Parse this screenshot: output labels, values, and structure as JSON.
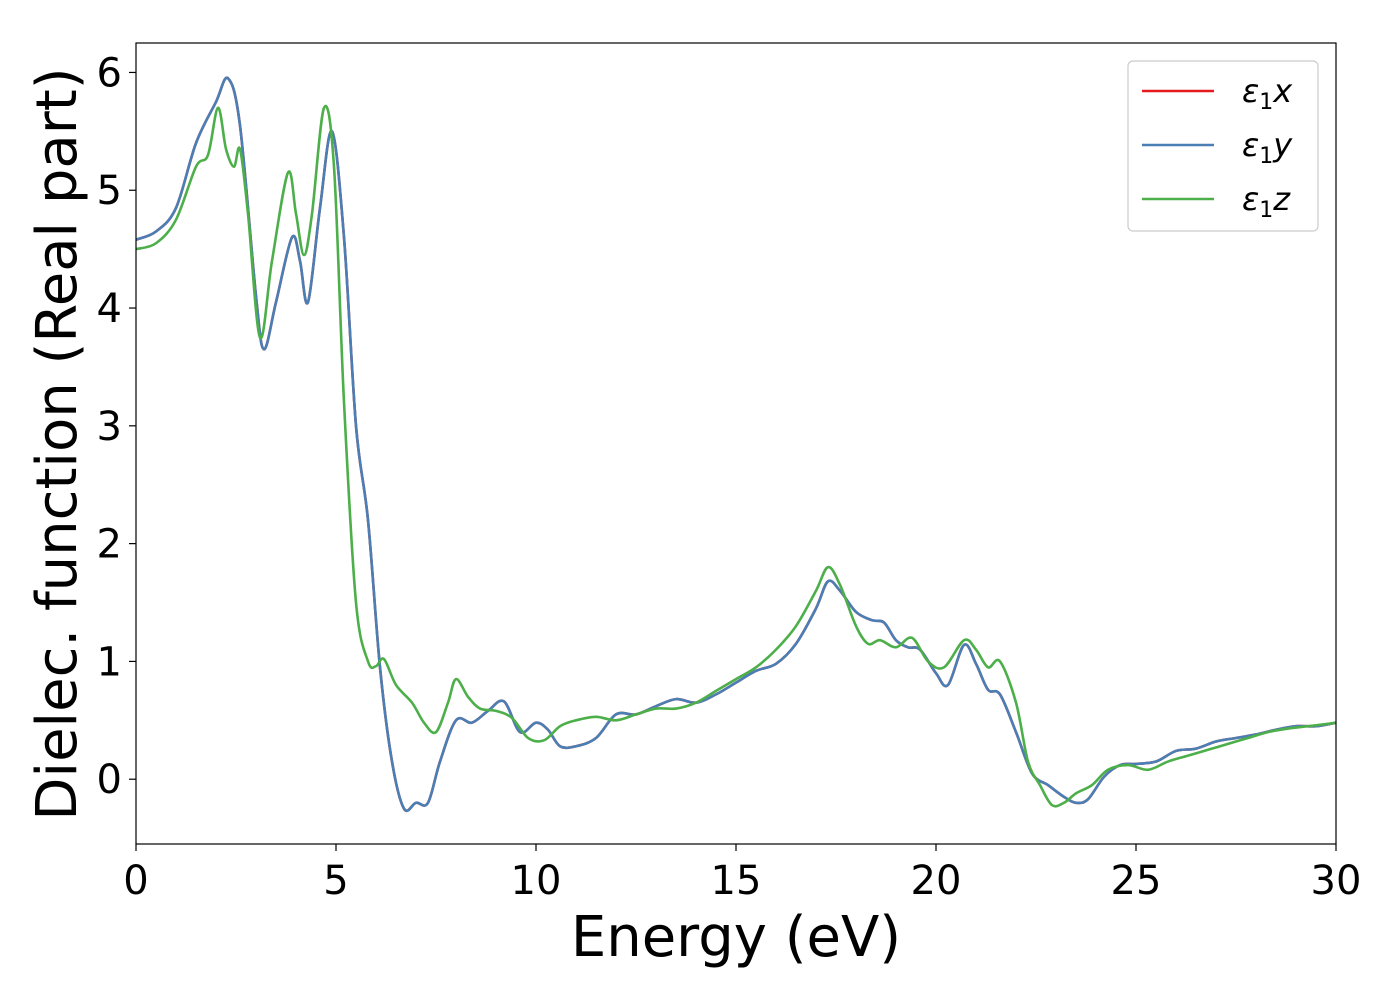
{
  "chart_data": {
    "type": "line",
    "xlabel": "Energy (eV)",
    "ylabel": "Dielec. function (Real part)",
    "xlim": [
      0,
      30
    ],
    "ylim": [
      -0.55,
      6.25
    ],
    "xticks": [
      "0",
      "5",
      "10",
      "15",
      "20",
      "25",
      "30"
    ],
    "yticks": [
      "0",
      "1",
      "2",
      "3",
      "4",
      "5",
      "6"
    ],
    "grid": false,
    "legend_position": "top-right",
    "series": [
      {
        "name": "ε₁x",
        "legend_base": "ε",
        "legend_sub": "1",
        "legend_var": "x",
        "color": "#e41a1c",
        "x": [
          0,
          0.5,
          1.0,
          1.5,
          2.0,
          2.3,
          2.6,
          3.0,
          3.2,
          3.5,
          3.9,
          4.1,
          4.3,
          4.6,
          4.9,
          5.2,
          5.5,
          5.8,
          6.1,
          6.4,
          6.7,
          7.0,
          7.3,
          7.6,
          8.0,
          8.4,
          8.8,
          9.2,
          9.6,
          10.0,
          10.3,
          10.6,
          11.0,
          11.5,
          12.0,
          12.5,
          13.0,
          13.5,
          14.0,
          14.5,
          15.0,
          15.5,
          16.0,
          16.5,
          17.0,
          17.3,
          17.6,
          18.0,
          18.4,
          18.7,
          19.0,
          19.3,
          19.6,
          20.0,
          20.3,
          20.7,
          21.0,
          21.3,
          21.6,
          22.0,
          22.4,
          22.8,
          23.2,
          23.5,
          23.8,
          24.2,
          24.6,
          25.0,
          25.5,
          26.0,
          26.5,
          27.0,
          27.5,
          28.0,
          28.5,
          29.0,
          29.5,
          30.0
        ],
        "y": [
          4.58,
          4.65,
          4.85,
          5.4,
          5.75,
          5.95,
          5.55,
          4.1,
          3.65,
          4.05,
          4.6,
          4.4,
          4.05,
          4.85,
          5.5,
          4.6,
          3.0,
          2.2,
          0.95,
          0.15,
          -0.25,
          -0.2,
          -0.2,
          0.15,
          0.5,
          0.48,
          0.58,
          0.66,
          0.4,
          0.48,
          0.42,
          0.28,
          0.28,
          0.35,
          0.55,
          0.55,
          0.62,
          0.68,
          0.65,
          0.72,
          0.82,
          0.92,
          0.98,
          1.15,
          1.45,
          1.68,
          1.6,
          1.42,
          1.35,
          1.33,
          1.18,
          1.12,
          1.1,
          0.9,
          0.8,
          1.14,
          0.98,
          0.76,
          0.72,
          0.4,
          0.05,
          -0.05,
          -0.15,
          -0.2,
          -0.17,
          0.02,
          0.12,
          0.13,
          0.15,
          0.24,
          0.26,
          0.32,
          0.35,
          0.38,
          0.42,
          0.45,
          0.45,
          0.48
        ]
      },
      {
        "name": "ε₁y",
        "legend_base": "ε",
        "legend_sub": "1",
        "legend_var": "y",
        "color": "#4a7fb5",
        "x": [
          0,
          0.5,
          1.0,
          1.5,
          2.0,
          2.3,
          2.6,
          3.0,
          3.2,
          3.5,
          3.9,
          4.1,
          4.3,
          4.6,
          4.9,
          5.2,
          5.5,
          5.8,
          6.1,
          6.4,
          6.7,
          7.0,
          7.3,
          7.6,
          8.0,
          8.4,
          8.8,
          9.2,
          9.6,
          10.0,
          10.3,
          10.6,
          11.0,
          11.5,
          12.0,
          12.5,
          13.0,
          13.5,
          14.0,
          14.5,
          15.0,
          15.5,
          16.0,
          16.5,
          17.0,
          17.3,
          17.6,
          18.0,
          18.4,
          18.7,
          19.0,
          19.3,
          19.6,
          20.0,
          20.3,
          20.7,
          21.0,
          21.3,
          21.6,
          22.0,
          22.4,
          22.8,
          23.2,
          23.5,
          23.8,
          24.2,
          24.6,
          25.0,
          25.5,
          26.0,
          26.5,
          27.0,
          27.5,
          28.0,
          28.5,
          29.0,
          29.5,
          30.0
        ],
        "y": [
          4.58,
          4.65,
          4.85,
          5.4,
          5.75,
          5.95,
          5.55,
          4.1,
          3.65,
          4.05,
          4.6,
          4.4,
          4.05,
          4.85,
          5.5,
          4.6,
          3.0,
          2.2,
          0.95,
          0.15,
          -0.25,
          -0.2,
          -0.2,
          0.15,
          0.5,
          0.48,
          0.58,
          0.66,
          0.4,
          0.48,
          0.42,
          0.28,
          0.28,
          0.35,
          0.55,
          0.55,
          0.62,
          0.68,
          0.65,
          0.72,
          0.82,
          0.92,
          0.98,
          1.15,
          1.45,
          1.68,
          1.6,
          1.42,
          1.35,
          1.33,
          1.18,
          1.12,
          1.1,
          0.9,
          0.8,
          1.14,
          0.98,
          0.76,
          0.72,
          0.4,
          0.05,
          -0.05,
          -0.15,
          -0.2,
          -0.17,
          0.02,
          0.12,
          0.13,
          0.15,
          0.24,
          0.26,
          0.32,
          0.35,
          0.38,
          0.42,
          0.45,
          0.45,
          0.48
        ]
      },
      {
        "name": "ε₁z",
        "legend_base": "ε",
        "legend_sub": "1",
        "legend_var": "z",
        "color": "#4daf4a",
        "x": [
          0,
          0.5,
          1.0,
          1.5,
          1.8,
          2.05,
          2.25,
          2.45,
          2.6,
          2.8,
          3.1,
          3.4,
          3.8,
          4.0,
          4.2,
          4.4,
          4.7,
          4.95,
          5.2,
          5.5,
          5.8,
          6.0,
          6.2,
          6.5,
          6.9,
          7.2,
          7.5,
          7.8,
          8.0,
          8.3,
          8.6,
          9.0,
          9.4,
          9.8,
          10.2,
          10.6,
          11.0,
          11.5,
          12.0,
          12.5,
          13.0,
          13.5,
          14.0,
          14.5,
          15.0,
          15.5,
          16.0,
          16.5,
          17.0,
          17.3,
          17.6,
          18.0,
          18.3,
          18.6,
          19.0,
          19.4,
          19.8,
          20.2,
          20.7,
          21.0,
          21.3,
          21.6,
          22.0,
          22.3,
          22.6,
          22.9,
          23.2,
          23.5,
          23.9,
          24.3,
          24.8,
          25.3,
          25.8,
          26.3,
          26.8,
          27.3,
          27.8,
          28.3,
          28.8,
          29.3,
          29.8,
          30.0
        ],
        "y": [
          4.5,
          4.55,
          4.75,
          5.2,
          5.3,
          5.7,
          5.35,
          5.2,
          5.35,
          4.8,
          3.75,
          4.4,
          5.15,
          4.8,
          4.45,
          4.8,
          5.7,
          5.2,
          3.2,
          1.5,
          1.0,
          0.96,
          1.02,
          0.8,
          0.65,
          0.48,
          0.4,
          0.65,
          0.85,
          0.7,
          0.6,
          0.58,
          0.52,
          0.35,
          0.33,
          0.45,
          0.5,
          0.53,
          0.5,
          0.55,
          0.6,
          0.6,
          0.65,
          0.75,
          0.85,
          0.95,
          1.1,
          1.3,
          1.6,
          1.8,
          1.65,
          1.3,
          1.15,
          1.18,
          1.12,
          1.2,
          1.0,
          0.95,
          1.18,
          1.1,
          0.95,
          1.0,
          0.65,
          0.15,
          -0.05,
          -0.22,
          -0.2,
          -0.12,
          -0.05,
          0.08,
          0.12,
          0.08,
          0.15,
          0.2,
          0.25,
          0.3,
          0.35,
          0.4,
          0.43,
          0.45,
          0.47,
          0.48
        ]
      }
    ]
  }
}
